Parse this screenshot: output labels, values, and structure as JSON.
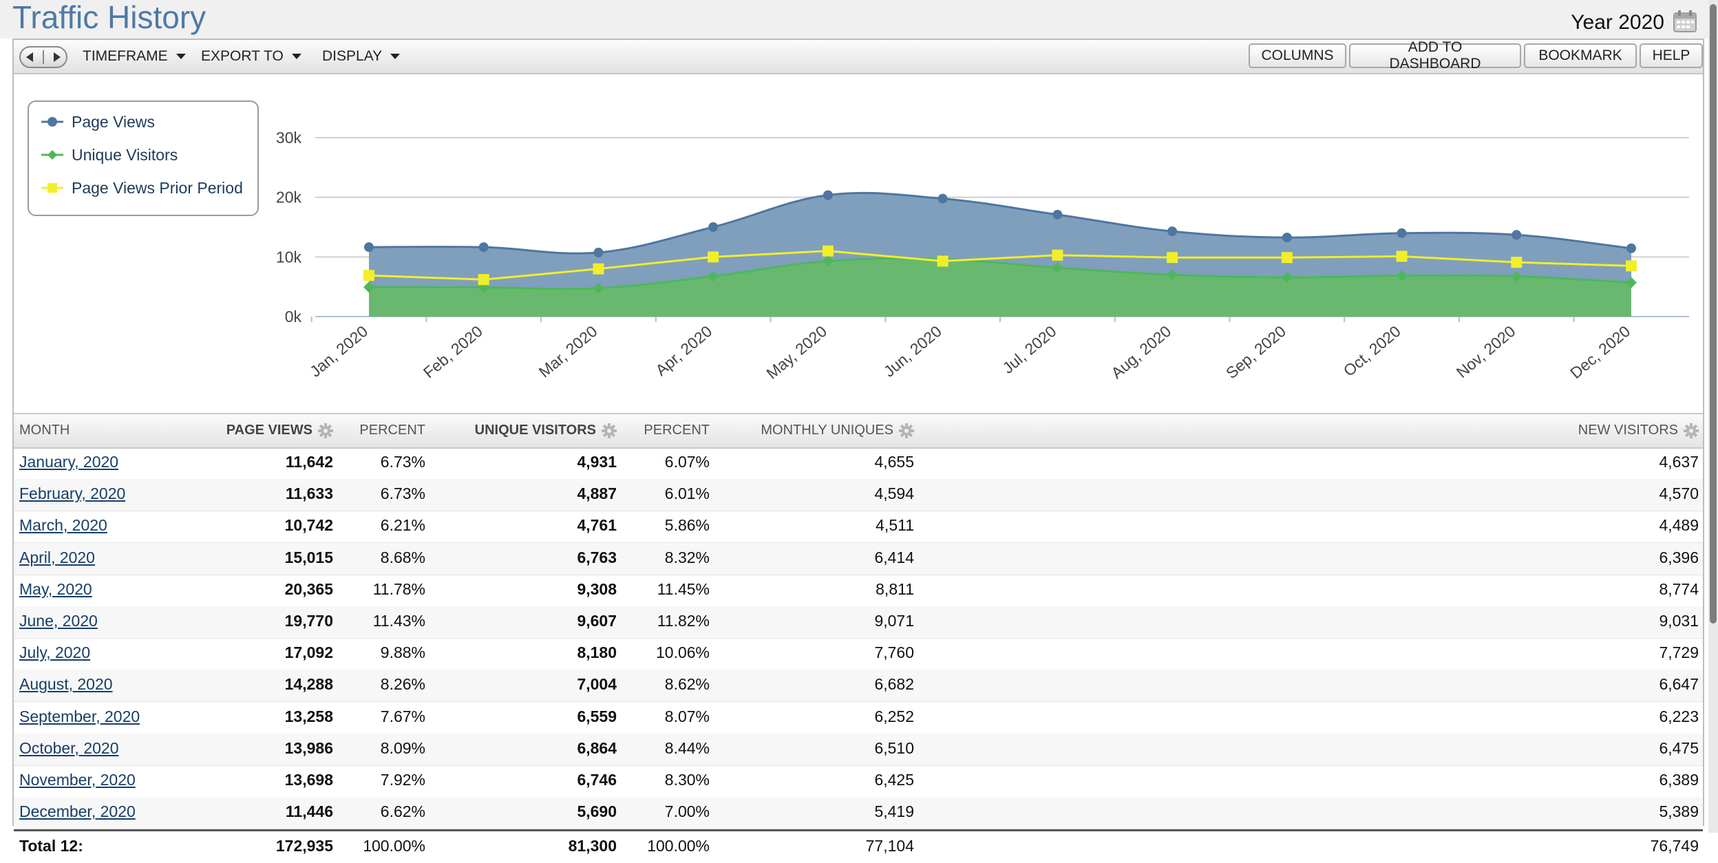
{
  "header": {
    "title": "Traffic History",
    "period": "Year 2020"
  },
  "toolbar": {
    "menus": [
      "TIMEFRAME",
      "EXPORT TO",
      "DISPLAY"
    ],
    "buttons": [
      "COLUMNS",
      "ADD TO DASHBOARD",
      "BOOKMARK",
      "HELP"
    ]
  },
  "chart_data": {
    "type": "area",
    "categories": [
      "Jan, 2020",
      "Feb, 2020",
      "Mar, 2020",
      "Apr, 2020",
      "May, 2020",
      "Jun, 2020",
      "Jul, 2020",
      "Aug, 2020",
      "Sep, 2020",
      "Oct, 2020",
      "Nov, 2020",
      "Dec, 2020"
    ],
    "series": [
      {
        "name": "Page Views",
        "color": "#4e76a0",
        "values": [
          11642,
          11633,
          10742,
          15015,
          20365,
          19770,
          17092,
          14288,
          13258,
          13986,
          13698,
          11446
        ]
      },
      {
        "name": "Unique Visitors",
        "color": "#4fb75a",
        "values": [
          4931,
          4887,
          4761,
          6763,
          9308,
          9607,
          8180,
          7004,
          6559,
          6864,
          6746,
          5690
        ]
      },
      {
        "name": "Page Views Prior Period",
        "color": "#f2ee2a",
        "values": [
          6900,
          6200,
          8000,
          10000,
          11000,
          9300,
          10300,
          9900,
          9900,
          10100,
          9100,
          8500
        ]
      }
    ],
    "ylim": [
      0,
      30000
    ],
    "yticks": [
      "0k",
      "10k",
      "20k",
      "30k"
    ],
    "grid": true,
    "legend": "top-left"
  },
  "table": {
    "columns": [
      {
        "label": "MONTH",
        "bold": false,
        "gear": false
      },
      {
        "label": "PAGE VIEWS",
        "bold": true,
        "gear": true
      },
      {
        "label": "PERCENT",
        "bold": false,
        "gear": false
      },
      {
        "label": "UNIQUE VISITORS",
        "bold": true,
        "gear": true
      },
      {
        "label": "PERCENT",
        "bold": false,
        "gear": false
      },
      {
        "label": "MONTHLY UNIQUES",
        "bold": false,
        "gear": true
      },
      {
        "label": "NEW VISITORS",
        "bold": false,
        "gear": true
      }
    ],
    "rows": [
      [
        "January, 2020",
        "11,642",
        "6.73%",
        "4,931",
        "6.07%",
        "4,655",
        "4,637"
      ],
      [
        "February, 2020",
        "11,633",
        "6.73%",
        "4,887",
        "6.01%",
        "4,594",
        "4,570"
      ],
      [
        "March, 2020",
        "10,742",
        "6.21%",
        "4,761",
        "5.86%",
        "4,511",
        "4,489"
      ],
      [
        "April, 2020",
        "15,015",
        "8.68%",
        "6,763",
        "8.32%",
        "6,414",
        "6,396"
      ],
      [
        "May, 2020",
        "20,365",
        "11.78%",
        "9,308",
        "11.45%",
        "8,811",
        "8,774"
      ],
      [
        "June, 2020",
        "19,770",
        "11.43%",
        "9,607",
        "11.82%",
        "9,071",
        "9,031"
      ],
      [
        "July, 2020",
        "17,092",
        "9.88%",
        "8,180",
        "10.06%",
        "7,760",
        "7,729"
      ],
      [
        "August, 2020",
        "14,288",
        "8.26%",
        "7,004",
        "8.62%",
        "6,682",
        "6,647"
      ],
      [
        "September, 2020",
        "13,258",
        "7.67%",
        "6,559",
        "8.07%",
        "6,252",
        "6,223"
      ],
      [
        "October, 2020",
        "13,986",
        "8.09%",
        "6,864",
        "8.44%",
        "6,510",
        "6,475"
      ],
      [
        "November, 2020",
        "13,698",
        "7.92%",
        "6,746",
        "8.30%",
        "6,425",
        "6,389"
      ],
      [
        "December, 2020",
        "11,446",
        "6.62%",
        "5,690",
        "7.00%",
        "5,419",
        "5,389"
      ]
    ],
    "total": [
      "Total 12:",
      "172,935",
      "100.00%",
      "81,300",
      "100.00%",
      "77,104",
      "76,749"
    ]
  }
}
